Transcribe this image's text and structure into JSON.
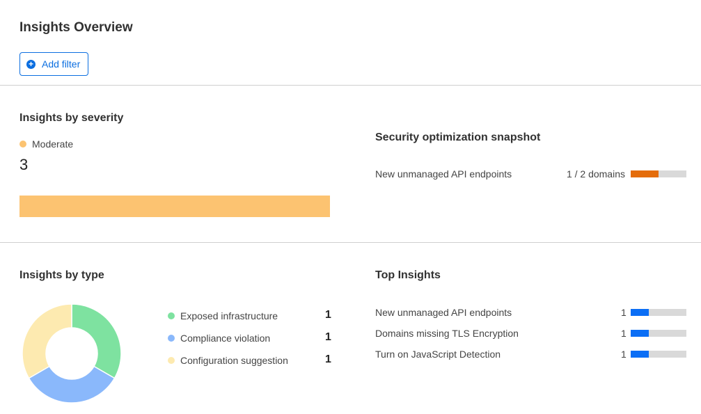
{
  "page_title": "Insights Overview",
  "add_filter_label": "Add filter",
  "severity": {
    "title": "Insights by severity",
    "legend_label": "Moderate",
    "legend_color": "#fcc371",
    "count": "3",
    "bar_fraction": 1.0
  },
  "snapshot": {
    "title": "Security optimization snapshot",
    "rows": [
      {
        "label": "New unmanaged API endpoints",
        "value": "1 / 2 domains",
        "fraction": 0.5,
        "color": "#e46c0a"
      }
    ]
  },
  "by_type": {
    "title": "Insights by type",
    "items": [
      {
        "label": "Exposed infrastructure",
        "count": "1",
        "color": "#7ee2a0"
      },
      {
        "label": "Compliance violation",
        "count": "1",
        "color": "#8ab8fb"
      },
      {
        "label": "Configuration suggestion",
        "count": "1",
        "color": "#fdeab0"
      }
    ]
  },
  "top_insights": {
    "title": "Top Insights",
    "rows": [
      {
        "label": "New unmanaged API endpoints",
        "count": "1",
        "fraction": 0.33
      },
      {
        "label": "Domains missing TLS Encryption",
        "count": "1",
        "fraction": 0.33
      },
      {
        "label": "Turn on JavaScript Detection",
        "count": "1",
        "fraction": 0.33
      }
    ],
    "bar_color": "#0b6ef5"
  }
}
